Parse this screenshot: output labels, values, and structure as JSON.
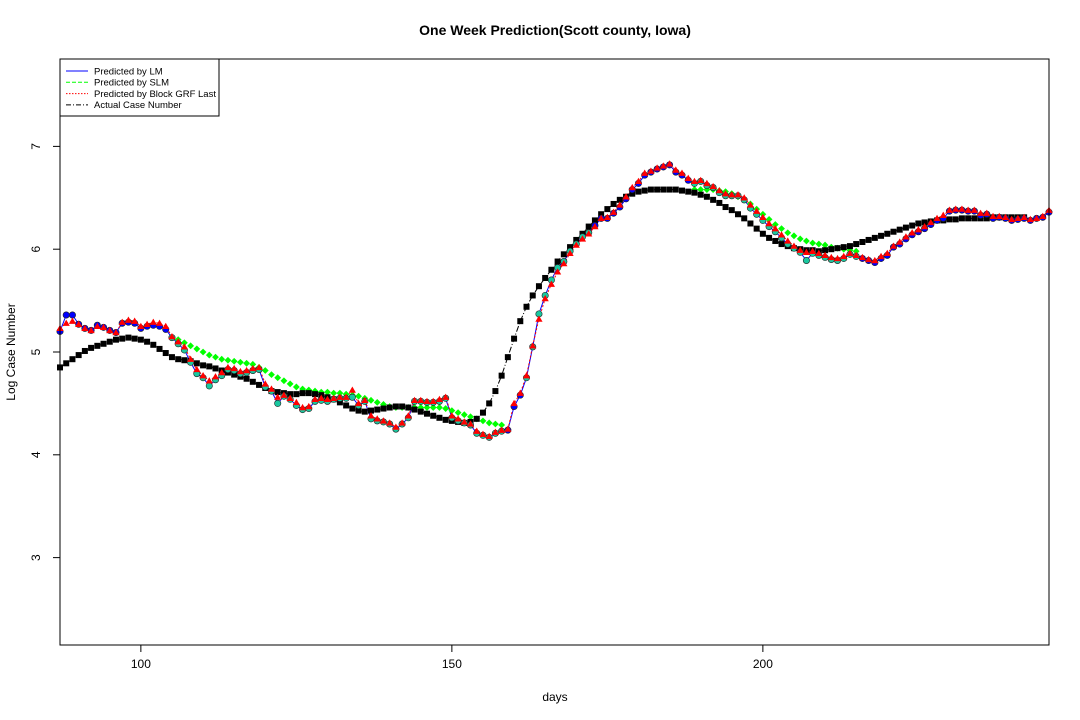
{
  "chart_data": {
    "type": "scatter",
    "title": "One Week Prediction(Scott county, Iowa)",
    "xlabel": "days",
    "ylabel": "Log Case Number",
    "xlim": [
      87,
      246
    ],
    "ylim": [
      2.15,
      7.85
    ],
    "x_ticks": [
      100,
      150,
      200
    ],
    "y_ticks": [
      3,
      4,
      5,
      6,
      7
    ],
    "legend": {
      "position": "top-left",
      "entries": [
        {
          "label": "Predicted by LM",
          "color": "#0000ff",
          "line": "solid"
        },
        {
          "label": "Predicted by SLM",
          "color": "#00ff00",
          "line": "dashed"
        },
        {
          "label": "Predicted by Block GRF Last",
          "color": "#ff0000",
          "line": "dotted"
        },
        {
          "label": "Actual Case Number",
          "color": "#000000",
          "line": "dashdot"
        }
      ]
    },
    "x": [
      87,
      88,
      89,
      90,
      91,
      92,
      93,
      94,
      95,
      96,
      97,
      98,
      99,
      100,
      101,
      102,
      103,
      104,
      105,
      106,
      107,
      108,
      109,
      110,
      111,
      112,
      113,
      114,
      115,
      116,
      117,
      118,
      119,
      120,
      121,
      122,
      123,
      124,
      125,
      126,
      127,
      128,
      129,
      130,
      131,
      132,
      133,
      134,
      135,
      136,
      137,
      138,
      139,
      140,
      141,
      142,
      143,
      144,
      145,
      146,
      147,
      148,
      149,
      150,
      151,
      152,
      153,
      154,
      155,
      156,
      157,
      158,
      159,
      160,
      161,
      162,
      163,
      164,
      165,
      166,
      167,
      168,
      169,
      170,
      171,
      172,
      173,
      174,
      175,
      176,
      177,
      178,
      179,
      180,
      181,
      182,
      183,
      184,
      185,
      186,
      187,
      188,
      189,
      190,
      191,
      192,
      193,
      194,
      195,
      196,
      197,
      198,
      199,
      200,
      201,
      202,
      203,
      204,
      205,
      206,
      207,
      208,
      209,
      210,
      211,
      212,
      213,
      214,
      215,
      216,
      217,
      218,
      219,
      220,
      221,
      222,
      223,
      224,
      225,
      226,
      227,
      228,
      229,
      230,
      231,
      232,
      233,
      234,
      235,
      236,
      237,
      238,
      239,
      240,
      241,
      242,
      243,
      244,
      245,
      246
    ],
    "series": [
      {
        "name": "Actual Case Number",
        "marker": "square",
        "color": "#000000",
        "values": [
          4.85,
          4.89,
          4.93,
          4.97,
          5.01,
          5.04,
          5.06,
          5.08,
          5.1,
          5.12,
          5.13,
          5.14,
          5.13,
          5.12,
          5.1,
          5.07,
          5.03,
          4.99,
          4.95,
          4.93,
          4.92,
          4.91,
          4.89,
          4.87,
          4.86,
          4.84,
          4.82,
          4.8,
          4.78,
          4.76,
          4.74,
          4.71,
          4.68,
          4.65,
          4.62,
          4.61,
          4.6,
          4.59,
          4.59,
          4.6,
          4.6,
          4.59,
          4.58,
          4.56,
          4.54,
          4.51,
          4.48,
          4.45,
          4.43,
          4.42,
          4.43,
          4.44,
          4.45,
          4.46,
          4.47,
          4.47,
          4.46,
          4.44,
          4.42,
          4.4,
          4.38,
          4.36,
          4.34,
          4.33,
          4.32,
          4.31,
          4.32,
          4.35,
          4.41,
          4.5,
          4.62,
          4.77,
          4.95,
          5.13,
          5.3,
          5.44,
          5.55,
          5.64,
          5.72,
          5.8,
          5.88,
          5.95,
          6.02,
          6.09,
          6.15,
          6.22,
          6.28,
          6.34,
          6.39,
          6.44,
          6.48,
          6.51,
          6.54,
          6.56,
          6.57,
          6.58,
          6.58,
          6.58,
          6.58,
          6.58,
          6.57,
          6.56,
          6.55,
          6.53,
          6.51,
          6.48,
          6.45,
          6.41,
          6.38,
          6.34,
          6.3,
          6.25,
          6.2,
          6.15,
          6.11,
          6.08,
          6.05,
          6.03,
          6.01,
          6.0,
          5.99,
          5.99,
          5.98,
          5.99,
          6.0,
          6.01,
          6.02,
          6.03,
          6.05,
          6.07,
          6.09,
          6.11,
          6.13,
          6.15,
          6.17,
          6.19,
          6.21,
          6.23,
          6.25,
          6.26,
          6.27,
          6.28,
          6.28,
          6.29,
          6.29,
          6.3,
          6.3,
          6.3,
          6.3,
          6.3,
          6.31,
          6.31,
          6.31,
          6.31,
          6.31,
          6.31
        ]
      },
      {
        "name": "Predicted by SLM",
        "marker": "diamond",
        "color": "#00ff00",
        "values": [
          null,
          null,
          null,
          null,
          null,
          null,
          null,
          null,
          null,
          null,
          null,
          null,
          null,
          null,
          null,
          null,
          null,
          null,
          5.14,
          5.12,
          5.09,
          5.06,
          5.03,
          5.0,
          4.97,
          4.95,
          4.93,
          4.92,
          4.91,
          4.9,
          4.89,
          4.88,
          4.85,
          4.82,
          4.78,
          4.75,
          4.72,
          4.69,
          4.66,
          4.64,
          4.63,
          4.62,
          4.61,
          4.61,
          4.6,
          4.6,
          4.59,
          4.58,
          4.57,
          4.55,
          4.53,
          4.51,
          4.49,
          4.47,
          4.46,
          4.46,
          4.46,
          4.46,
          4.46,
          4.46,
          4.46,
          4.46,
          4.45,
          4.43,
          4.41,
          4.39,
          4.37,
          4.35,
          4.33,
          4.31,
          4.3,
          4.29,
          null,
          null,
          null,
          null,
          null,
          null,
          null,
          null,
          null,
          null,
          null,
          null,
          null,
          null,
          null,
          null,
          null,
          null,
          null,
          null,
          null,
          null,
          null,
          null,
          null,
          null,
          null,
          null,
          null,
          null,
          6.58,
          6.58,
          6.58,
          6.58,
          6.57,
          6.56,
          6.54,
          6.51,
          6.48,
          6.44,
          6.39,
          6.34,
          6.29,
          6.24,
          6.2,
          6.16,
          6.13,
          6.1,
          6.08,
          6.06,
          6.05,
          6.04,
          6.02,
          6.01,
          6.0,
          5.99,
          5.98,
          null,
          null,
          null,
          null,
          null,
          null,
          null,
          null,
          null,
          null,
          null,
          null,
          null,
          null,
          null,
          null,
          null,
          null,
          null,
          null,
          null,
          null,
          null,
          null,
          null,
          null,
          null,
          null,
          null
        ]
      },
      {
        "name": "Predicted by LM",
        "marker": "circle",
        "color": "#0000ff",
        "values": [
          5.2,
          5.36,
          5.36,
          5.27,
          5.23,
          5.21,
          5.26,
          5.24,
          5.21,
          5.19,
          5.28,
          5.29,
          5.28,
          5.23,
          5.25,
          5.26,
          5.25,
          5.22,
          5.14,
          5.08,
          5.02,
          4.9,
          4.79,
          4.75,
          4.67,
          4.73,
          4.77,
          4.83,
          4.82,
          4.79,
          4.8,
          4.82,
          4.83,
          4.66,
          4.62,
          4.5,
          4.57,
          4.54,
          4.48,
          4.44,
          4.45,
          4.52,
          4.53,
          4.52,
          4.54,
          4.55,
          4.55,
          4.56,
          4.48,
          4.52,
          4.35,
          4.33,
          4.32,
          4.3,
          4.25,
          4.3,
          4.36,
          4.52,
          4.52,
          4.51,
          4.51,
          4.52,
          4.55,
          4.36,
          4.33,
          4.31,
          4.29,
          4.21,
          4.19,
          4.17,
          4.21,
          4.23,
          4.24,
          4.47,
          4.58,
          4.75,
          5.05,
          5.37,
          5.55,
          5.7,
          5.82,
          5.88,
          5.98,
          6.05,
          6.12,
          6.16,
          6.23,
          6.3,
          6.3,
          6.35,
          6.41,
          6.49,
          6.58,
          6.64,
          6.72,
          6.75,
          6.78,
          6.8,
          6.82,
          6.75,
          6.72,
          6.67,
          6.64,
          6.66,
          6.62,
          6.6,
          6.55,
          6.52,
          6.52,
          6.52,
          6.48,
          6.4,
          6.34,
          6.28,
          6.22,
          6.17,
          6.11,
          6.05,
          6.01,
          5.97,
          5.89,
          5.96,
          5.94,
          5.92,
          5.9,
          5.89,
          5.91,
          5.95,
          5.93,
          5.91,
          5.89,
          5.87,
          5.91,
          5.94,
          6.02,
          6.05,
          6.1,
          6.14,
          6.17,
          6.2,
          6.24,
          6.28,
          6.3,
          6.37,
          6.38,
          6.38,
          6.37,
          6.37,
          6.33,
          6.34,
          6.3,
          6.31,
          6.3,
          6.28,
          6.29,
          6.3,
          6.28,
          6.3,
          6.31,
          6.36
        ]
      },
      {
        "name": "Predicted by Block GRF Last",
        "marker": "triangle",
        "color": "#ff0000",
        "values": [
          5.23,
          5.28,
          5.3,
          5.27,
          5.23,
          5.21,
          5.25,
          5.24,
          5.21,
          5.19,
          5.29,
          5.31,
          5.3,
          5.25,
          5.27,
          5.29,
          5.28,
          5.25,
          5.15,
          5.1,
          5.05,
          4.93,
          4.83,
          4.77,
          4.72,
          4.76,
          4.8,
          4.85,
          4.84,
          4.81,
          4.82,
          4.84,
          4.85,
          4.69,
          4.64,
          4.56,
          4.58,
          4.55,
          4.51,
          4.46,
          4.47,
          4.54,
          4.55,
          4.54,
          4.55,
          4.56,
          4.56,
          4.63,
          4.5,
          4.53,
          4.38,
          4.35,
          4.33,
          4.31,
          4.27,
          4.31,
          4.38,
          4.53,
          4.53,
          4.52,
          4.52,
          4.54,
          4.56,
          4.38,
          4.35,
          4.32,
          4.3,
          4.23,
          4.2,
          4.18,
          4.22,
          4.24,
          4.25,
          4.5,
          4.6,
          4.77,
          5.06,
          5.32,
          5.52,
          5.66,
          5.78,
          5.86,
          5.96,
          6.04,
          6.1,
          6.15,
          6.22,
          6.3,
          6.31,
          6.36,
          6.43,
          6.51,
          6.6,
          6.66,
          6.74,
          6.76,
          6.79,
          6.81,
          6.83,
          6.77,
          6.74,
          6.69,
          6.66,
          6.67,
          6.64,
          6.61,
          6.57,
          6.54,
          6.53,
          6.53,
          6.5,
          6.43,
          6.37,
          6.31,
          6.25,
          6.2,
          6.14,
          6.08,
          6.03,
          5.99,
          5.97,
          5.98,
          5.96,
          5.94,
          5.92,
          5.91,
          5.93,
          5.96,
          5.94,
          5.92,
          5.9,
          5.89,
          5.93,
          5.96,
          6.03,
          6.07,
          6.12,
          6.16,
          6.19,
          6.22,
          6.26,
          6.3,
          6.33,
          6.38,
          6.39,
          6.39,
          6.38,
          6.38,
          6.35,
          6.35,
          6.32,
          6.32,
          6.31,
          6.29,
          6.3,
          6.31,
          6.29,
          6.3,
          6.32,
          6.38
        ]
      }
    ]
  }
}
